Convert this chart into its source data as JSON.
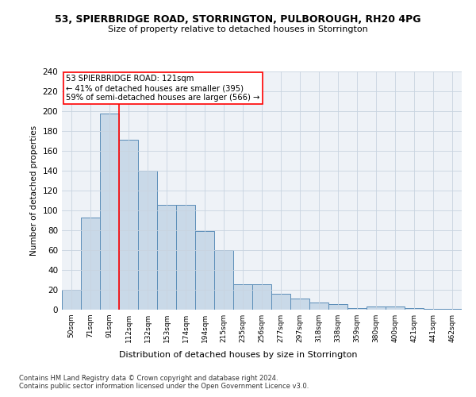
{
  "title_line1": "53, SPIERBRIDGE ROAD, STORRINGTON, PULBOROUGH, RH20 4PG",
  "title_line2": "Size of property relative to detached houses in Storrington",
  "xlabel": "Distribution of detached houses by size in Storrington",
  "ylabel": "Number of detached properties",
  "categories": [
    "50sqm",
    "71sqm",
    "91sqm",
    "112sqm",
    "132sqm",
    "153sqm",
    "174sqm",
    "194sqm",
    "215sqm",
    "235sqm",
    "256sqm",
    "277sqm",
    "297sqm",
    "318sqm",
    "338sqm",
    "359sqm",
    "380sqm",
    "400sqm",
    "421sqm",
    "441sqm",
    "462sqm"
  ],
  "values": [
    20,
    93,
    198,
    171,
    140,
    106,
    106,
    79,
    60,
    26,
    26,
    16,
    11,
    7,
    6,
    2,
    3,
    3,
    2,
    1,
    1
  ],
  "bar_color": "#c9d9e8",
  "bar_edge_color": "#5b8db8",
  "vline_x_index": 2.5,
  "vline_color": "red",
  "annotation_text": "53 SPIERBRIDGE ROAD: 121sqm\n← 41% of detached houses are smaller (395)\n59% of semi-detached houses are larger (566) →",
  "annotation_box_color": "white",
  "annotation_box_edge_color": "red",
  "ylim": [
    0,
    240
  ],
  "yticks": [
    0,
    20,
    40,
    60,
    80,
    100,
    120,
    140,
    160,
    180,
    200,
    220,
    240
  ],
  "footnote_line1": "Contains HM Land Registry data © Crown copyright and database right 2024.",
  "footnote_line2": "Contains public sector information licensed under the Open Government Licence v3.0.",
  "background_color": "#eef2f7",
  "grid_color": "#c8d4e0"
}
